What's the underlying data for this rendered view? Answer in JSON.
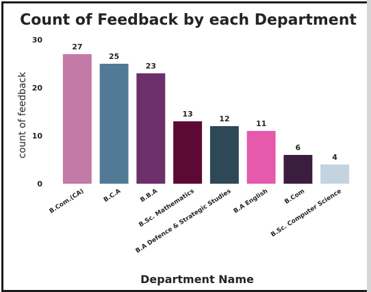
{
  "chart_data": {
    "type": "bar",
    "title": "Count of Feedback by each Department",
    "xlabel": "Department Name",
    "ylabel": "count of feedback",
    "ylim": [
      0,
      30
    ],
    "yticks": [
      0,
      10,
      20,
      30
    ],
    "grid": false,
    "categories": [
      "B.Com.(CA)",
      "B.C.A",
      "B.B.A",
      "B.Sc. Mathematics",
      "B.A Defence & Strategic Studies",
      "B.A English",
      "B.Com",
      "B.Sc. Computer Science"
    ],
    "values": [
      27,
      25,
      23,
      13,
      12,
      11,
      6,
      4
    ],
    "colors": [
      "#c47aa6",
      "#527a96",
      "#6d2f69",
      "#5c0a33",
      "#2f4858",
      "#e659ac",
      "#3b1d3f",
      "#c3d3df"
    ]
  }
}
